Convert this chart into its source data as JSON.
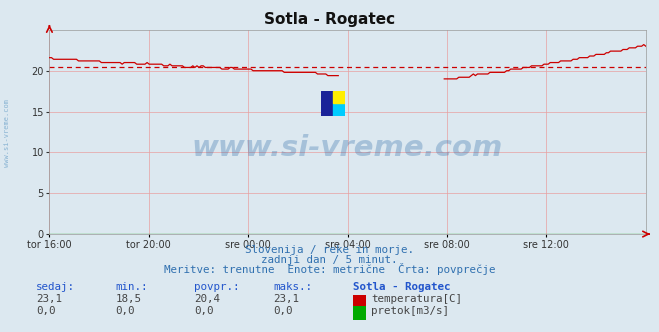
{
  "title": "Sotla - Rogatec",
  "bg_color": "#dce8f0",
  "plot_bg_color": "#dce8f0",
  "line_color_temp": "#cc0000",
  "line_color_flow": "#00aa00",
  "avg_line_color": "#cc0000",
  "avg_value": 20.4,
  "y_min": 0,
  "y_max": 25,
  "y_ticks": [
    0,
    5,
    10,
    15,
    20
  ],
  "x_labels": [
    "tor 16:00",
    "tor 20:00",
    "sre 00:00",
    "sre 04:00",
    "sre 08:00",
    "sre 12:00"
  ],
  "grid_color": "#e8a0a0",
  "watermark_text": "www.si-vreme.com",
  "watermark_color": "#1a5fa0",
  "watermark_alpha": 0.28,
  "subtitle1": "Slovenija / reke in morje.",
  "subtitle2": "zadnji dan / 5 minut.",
  "subtitle3": "Meritve: trenutne  Enote: metrične  Črta: povprečje",
  "subtitle_color": "#3070b0",
  "table_header": [
    "sedaj:",
    "min.:",
    "povpr.:",
    "maks.:",
    "Sotla - Rogatec"
  ],
  "table_row1": [
    "23,1",
    "18,5",
    "20,4",
    "23,1",
    "temperatura[C]"
  ],
  "table_row2": [
    "0,0",
    "0,0",
    "0,0",
    "0,0",
    "pretok[m3/s]"
  ],
  "left_label": "www.si-vreme.com"
}
